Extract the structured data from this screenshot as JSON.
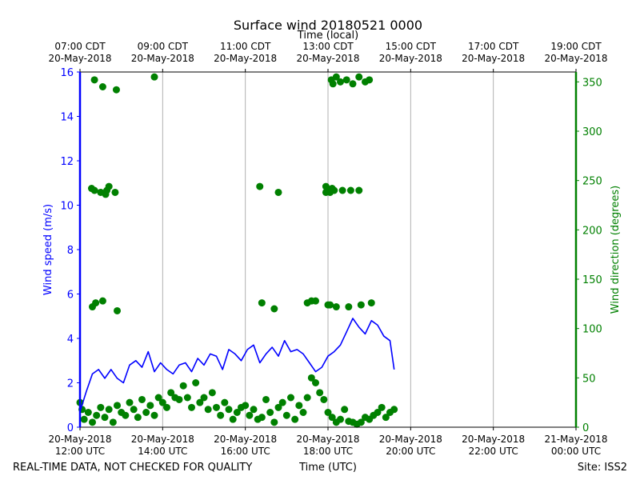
{
  "chart_data": {
    "type": "line+scatter",
    "title": "Surface wind 20180521 0000",
    "top_xlabel": "Time (local)",
    "xlabel": "Time (UTC)",
    "ylabel_left": "Wind speed (m/s)",
    "ylabel_right": "Wind direction (degrees)",
    "footer_left": "REAL-TIME DATA, NOT CHECKED FOR QUALITY",
    "footer_right": "Site: ISS2",
    "xlim_hours_utc": [
      12,
      24
    ],
    "ylim_left": [
      0,
      16
    ],
    "ylim_right": [
      0,
      360
    ],
    "grid": "x-only",
    "colors": {
      "speed": "#0000ff",
      "direction": "#008000",
      "grid": "#b0b0b0"
    },
    "bottom_ticks": [
      {
        "hour": 12,
        "line1": "20-May-2018",
        "line2": "12:00 UTC"
      },
      {
        "hour": 14,
        "line1": "20-May-2018",
        "line2": "14:00 UTC"
      },
      {
        "hour": 16,
        "line1": "20-May-2018",
        "line2": "16:00 UTC"
      },
      {
        "hour": 18,
        "line1": "20-May-2018",
        "line2": "18:00 UTC"
      },
      {
        "hour": 20,
        "line1": "20-May-2018",
        "line2": "20:00 UTC"
      },
      {
        "hour": 22,
        "line1": "20-May-2018",
        "line2": "22:00 UTC"
      },
      {
        "hour": 24,
        "line1": "21-May-2018",
        "line2": "00:00 UTC"
      }
    ],
    "top_ticks": [
      {
        "hour": 12,
        "line1": "07:00 CDT",
        "line2": "20-May-2018"
      },
      {
        "hour": 14,
        "line1": "09:00 CDT",
        "line2": "20-May-2018"
      },
      {
        "hour": 16,
        "line1": "11:00 CDT",
        "line2": "20-May-2018"
      },
      {
        "hour": 18,
        "line1": "13:00 CDT",
        "line2": "20-May-2018"
      },
      {
        "hour": 20,
        "line1": "15:00 CDT",
        "line2": "20-May-2018"
      },
      {
        "hour": 22,
        "line1": "17:00 CDT",
        "line2": "20-May-2018"
      },
      {
        "hour": 24,
        "line1": "19:00 CDT",
        "line2": "20-May-2018"
      }
    ],
    "left_ticks": [
      "0",
      "2",
      "4",
      "6",
      "8",
      "10",
      "12",
      "14",
      "16"
    ],
    "left_tick_values": [
      0,
      2,
      4,
      6,
      8,
      10,
      12,
      14,
      16
    ],
    "right_ticks": [
      "0",
      "50",
      "100",
      "150",
      "200",
      "250",
      "300",
      "350"
    ],
    "right_tick_values": [
      0,
      50,
      100,
      150,
      200,
      250,
      300,
      350
    ],
    "series": [
      {
        "name": "Wind speed (m/s)",
        "axis": "left",
        "style": "line",
        "x_hours_utc": [
          12.0,
          12.15,
          12.3,
          12.45,
          12.6,
          12.75,
          12.9,
          13.05,
          13.2,
          13.35,
          13.5,
          13.65,
          13.8,
          13.95,
          14.1,
          14.25,
          14.4,
          14.55,
          14.7,
          14.85,
          15.0,
          15.15,
          15.3,
          15.45,
          15.6,
          15.75,
          15.9,
          16.05,
          16.2,
          16.35,
          16.5,
          16.65,
          16.8,
          16.95,
          17.1,
          17.25,
          17.4,
          17.55,
          17.7,
          17.85,
          18.0,
          18.15,
          18.3,
          18.45,
          18.6,
          18.75,
          18.9,
          19.05,
          19.2,
          19.35,
          19.5,
          19.6
        ],
        "values": [
          0.7,
          1.6,
          2.4,
          2.6,
          2.2,
          2.6,
          2.2,
          2.0,
          2.8,
          3.0,
          2.7,
          3.4,
          2.5,
          2.9,
          2.6,
          2.4,
          2.8,
          2.9,
          2.5,
          3.1,
          2.8,
          3.3,
          3.2,
          2.6,
          3.5,
          3.3,
          3.0,
          3.5,
          3.7,
          2.9,
          3.3,
          3.6,
          3.2,
          3.9,
          3.4,
          3.5,
          3.3,
          2.9,
          2.5,
          2.7,
          3.2,
          3.4,
          3.7,
          4.3,
          4.9,
          4.5,
          4.2,
          4.8,
          4.6,
          4.1,
          3.9,
          2.6
        ]
      },
      {
        "name": "Wind direction (degrees)",
        "axis": "right",
        "style": "markers",
        "x_hours_utc": [
          12.0,
          12.05,
          12.1,
          12.2,
          12.3,
          12.4,
          12.5,
          12.6,
          12.7,
          12.8,
          12.9,
          13.0,
          13.1,
          13.2,
          13.3,
          13.4,
          13.5,
          13.6,
          13.7,
          13.8,
          13.9,
          14.0,
          14.1,
          14.2,
          14.3,
          14.4,
          14.5,
          14.6,
          14.7,
          14.8,
          14.9,
          15.0,
          15.1,
          15.2,
          15.3,
          15.4,
          15.5,
          15.6,
          15.7,
          15.8,
          15.9,
          16.0,
          16.1,
          16.2,
          16.3,
          16.4,
          16.5,
          16.6,
          16.7,
          16.8,
          16.9,
          17.0,
          17.1,
          17.2,
          17.3,
          17.4,
          17.5,
          17.6,
          17.7,
          17.8,
          17.9,
          18.0,
          18.1,
          18.2,
          18.3,
          18.4,
          18.5,
          18.6,
          18.7,
          18.8,
          18.9,
          19.0,
          19.1,
          19.2,
          19.3,
          19.4,
          19.5,
          19.6,
          12.28,
          12.35,
          12.5,
          12.62,
          12.65,
          12.7,
          12.85,
          13.8,
          16.35,
          16.8,
          18.08,
          18.12,
          18.2,
          18.3,
          18.45,
          18.6,
          18.75,
          18.9,
          19.0,
          12.3,
          12.38,
          12.55,
          12.9,
          16.4,
          17.5,
          12.35,
          12.55,
          12.88,
          16.7,
          17.6,
          17.7,
          18.0,
          18.05,
          18.2,
          18.5,
          18.8,
          19.05,
          17.95,
          18.15,
          18.35,
          18.55,
          18.75,
          17.95,
          18.0,
          18.05,
          18.1
        ],
        "values": [
          25,
          18,
          8,
          15,
          5,
          12,
          20,
          10,
          18,
          5,
          22,
          15,
          12,
          25,
          18,
          10,
          28,
          15,
          22,
          12,
          30,
          25,
          20,
          35,
          30,
          28,
          42,
          30,
          20,
          45,
          25,
          30,
          18,
          35,
          20,
          12,
          25,
          18,
          8,
          15,
          20,
          22,
          12,
          18,
          8,
          10,
          28,
          15,
          5,
          20,
          25,
          12,
          30,
          8,
          22,
          15,
          30,
          50,
          45,
          35,
          28,
          15,
          10,
          5,
          8,
          18,
          6,
          5,
          3,
          5,
          10,
          8,
          12,
          15,
          20,
          10,
          15,
          18,
          242,
          240,
          238,
          236,
          240,
          244,
          238,
          355,
          244,
          238,
          352,
          348,
          355,
          350,
          352,
          348,
          355,
          350,
          352,
          122,
          126,
          128,
          118,
          126,
          126,
          352,
          345,
          342,
          120,
          128,
          128,
          124,
          124,
          122,
          122,
          124,
          126,
          244,
          240,
          240,
          240,
          240,
          238,
          240,
          238,
          242
        ]
      }
    ]
  }
}
